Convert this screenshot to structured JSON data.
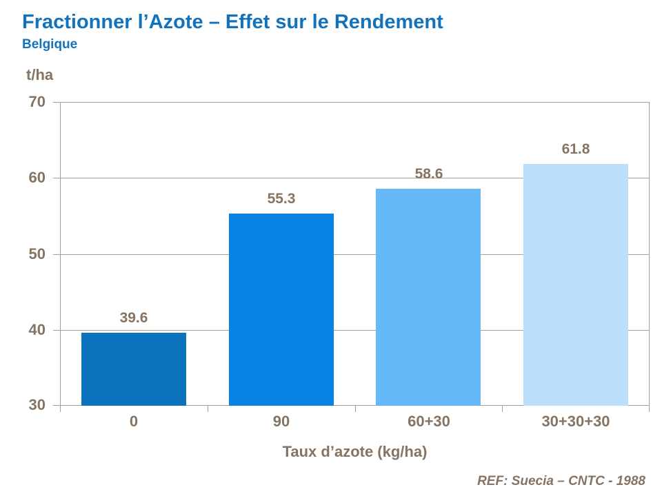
{
  "header": {
    "title": "Fractionner l’Azote – Effet sur le Rendement",
    "subtitle": "Belgique"
  },
  "chart_data": {
    "type": "bar",
    "categories": [
      "0",
      "90",
      "60+30",
      "30+30+30"
    ],
    "values": [
      39.6,
      55.3,
      58.6,
      61.8
    ],
    "value_labels": [
      "39.6",
      "55.3",
      "58.6",
      "61.8"
    ],
    "bar_colors": [
      "#0B73BB",
      "#0883E3",
      "#66B9F9",
      "#BCDFFB"
    ],
    "title": "Fractionner l’Azote – Effet sur le Rendement",
    "subtitle": "Belgique",
    "xlabel": "Taux d’azote (kg/ha)",
    "ylabel": "t/ha",
    "ylim": [
      30,
      70
    ],
    "yticks": [
      30,
      40,
      50,
      60,
      70
    ],
    "grid": "horizontal",
    "legend": "none"
  },
  "footer": {
    "reference": "REF: Suecia – CNTC - 1988"
  },
  "colors": {
    "title_blue": "#1272BC",
    "axis_text": "#857464",
    "gridline": "#A99D8F"
  }
}
